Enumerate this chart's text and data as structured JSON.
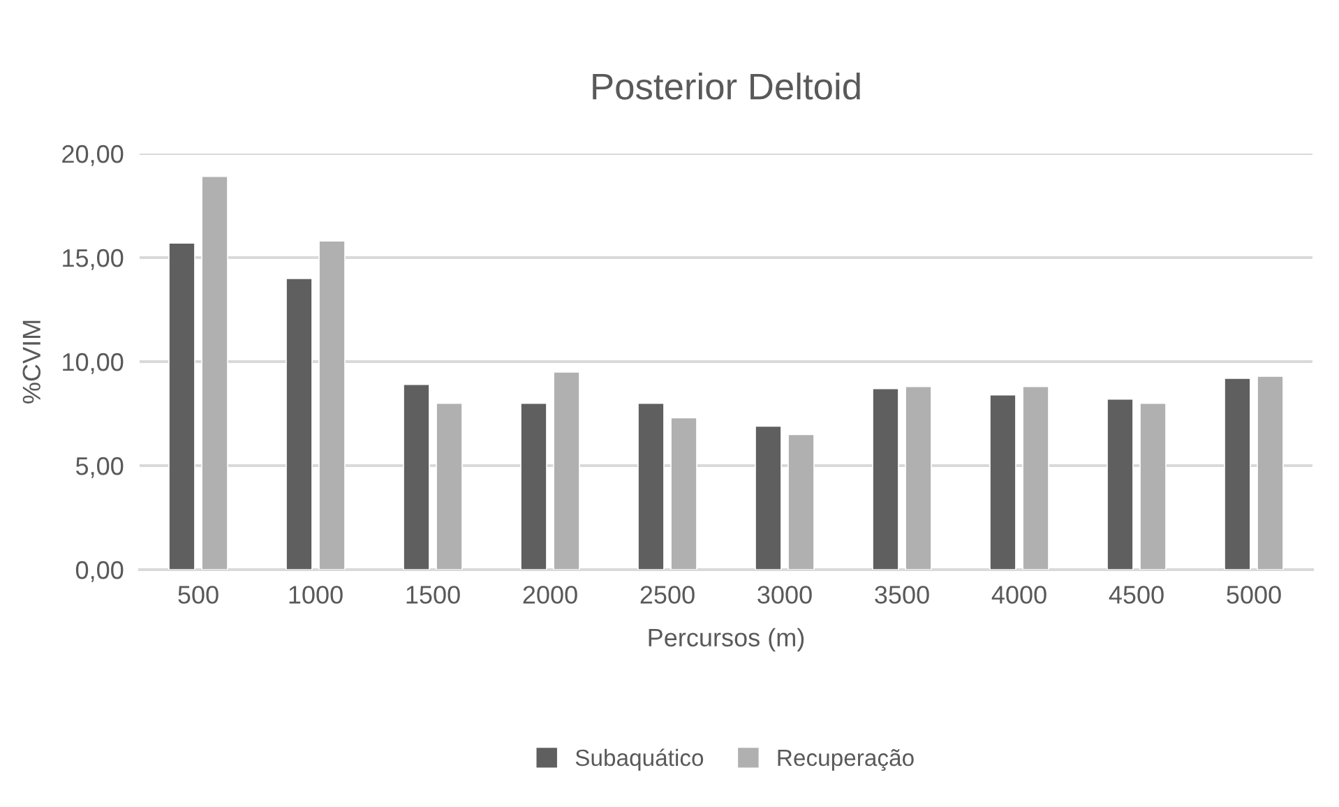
{
  "chart_data": {
    "type": "bar",
    "title": "Posterior Deltoid",
    "xlabel": "Percursos (m)",
    "ylabel": "%CVIM",
    "categories": [
      "500",
      "1000",
      "1500",
      "2000",
      "2500",
      "3000",
      "3500",
      "4000",
      "4500",
      "5000"
    ],
    "series": [
      {
        "name": "Subaquático",
        "color": "#5f5f5f",
        "values": [
          15.7,
          14.0,
          8.9,
          8.0,
          8.0,
          6.9,
          8.7,
          8.4,
          8.2,
          9.2
        ]
      },
      {
        "name": "Recuperação",
        "color": "#b0b0b0",
        "values": [
          18.9,
          15.8,
          8.0,
          9.5,
          7.3,
          6.5,
          8.8,
          8.8,
          8.0,
          9.3
        ]
      }
    ],
    "ylim": [
      0,
      20
    ],
    "yticks": [
      {
        "value": 0,
        "label": "0,00"
      },
      {
        "value": 5,
        "label": "5,00"
      },
      {
        "value": 10,
        "label": "10,00"
      },
      {
        "value": 15,
        "label": "15,00"
      },
      {
        "value": 20,
        "label": "20,00"
      }
    ],
    "grid": "y",
    "legend": "bottom"
  }
}
